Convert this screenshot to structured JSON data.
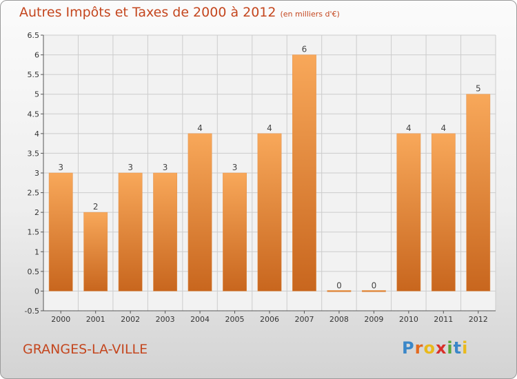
{
  "header": {
    "title": "Autres Impôts et Taxes de 2000 à 2012",
    "subtitle": "(en milliers d'€)"
  },
  "footer": {
    "town": "GRANGES-LA-VILLE",
    "logo": "Proxiti"
  },
  "colors": {
    "title": "#c4461e",
    "bar_top": "#f8a85a",
    "bar_bottom": "#c8661e",
    "grid": "#cccccc"
  },
  "chart_data": {
    "type": "bar",
    "categories": [
      "2000",
      "2001",
      "2002",
      "2003",
      "2004",
      "2005",
      "2006",
      "2007",
      "2008",
      "2009",
      "2010",
      "2011",
      "2012"
    ],
    "values": [
      3,
      2,
      3,
      3,
      4,
      3,
      4,
      6,
      0,
      0,
      4,
      4,
      5
    ],
    "data_labels": [
      "3",
      "2",
      "3",
      "3",
      "4",
      "3",
      "4",
      "6",
      "0",
      "0",
      "4",
      "4",
      "5"
    ],
    "yticks": [
      "-0.5",
      "0",
      "0.5",
      "1",
      "1.5",
      "2",
      "2.5",
      "3",
      "3.5",
      "4",
      "4.5",
      "5",
      "5.5",
      "6",
      "6.5"
    ],
    "ylim": [
      -0.5,
      6.5
    ],
    "grid": true,
    "xlabel": "",
    "ylabel": ""
  }
}
